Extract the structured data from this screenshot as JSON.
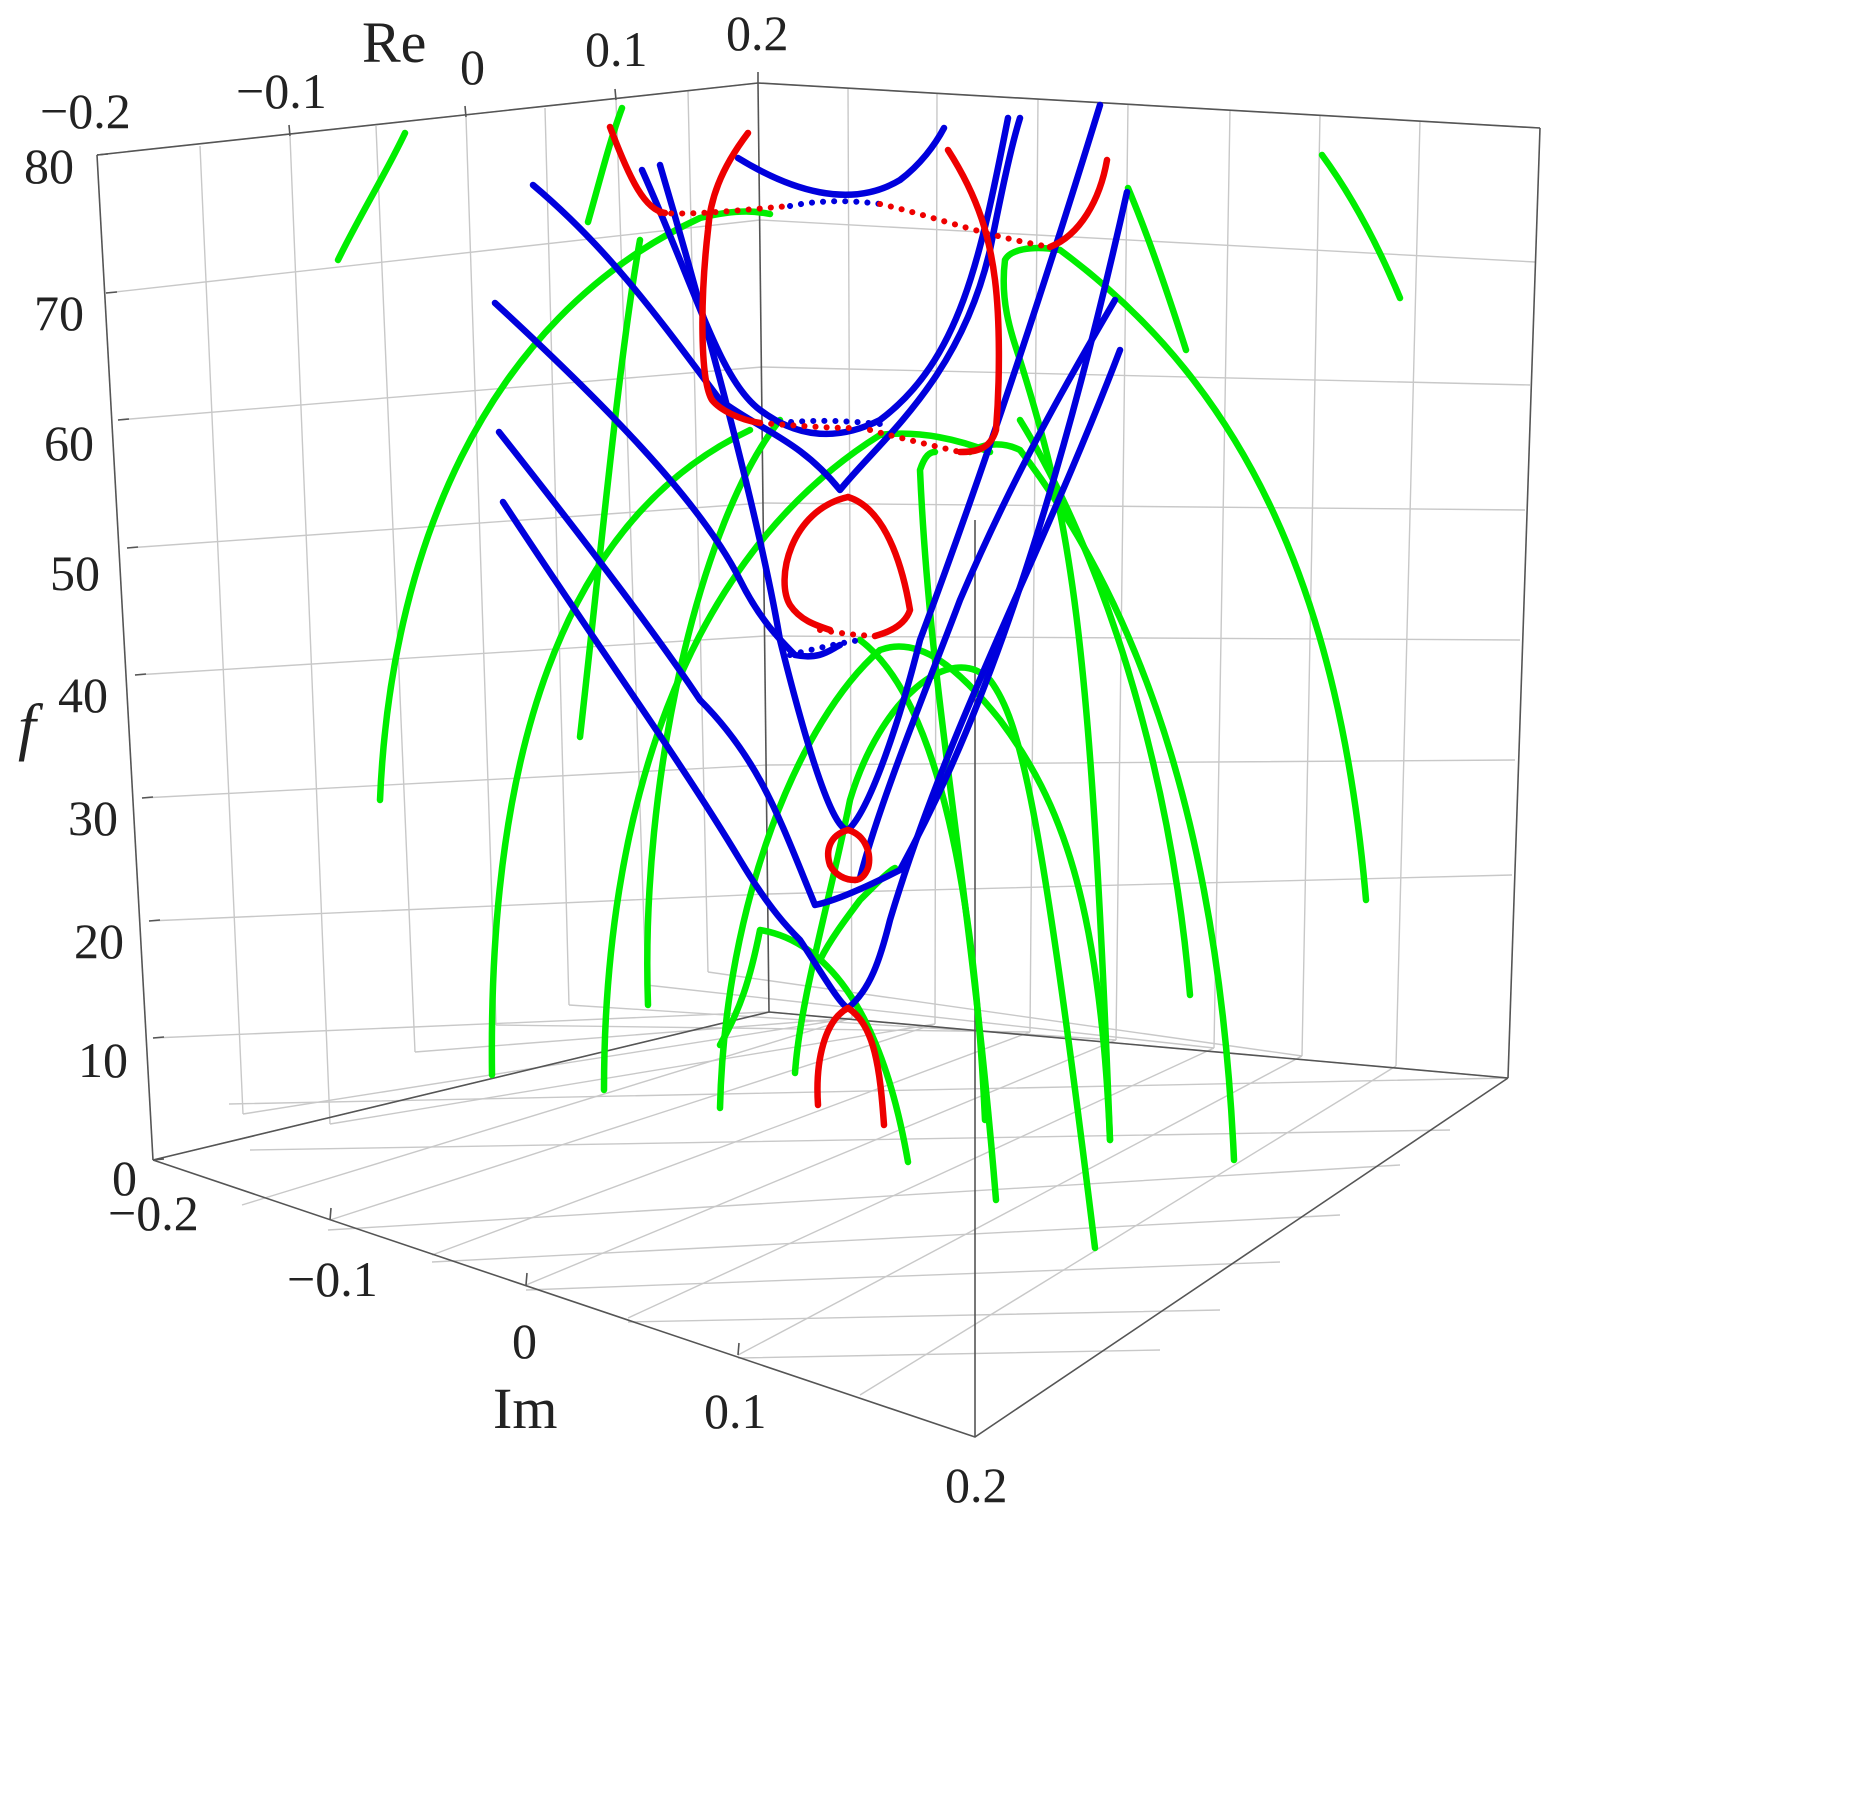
{
  "chart_data": {
    "type": "line3d",
    "axes": {
      "re": {
        "label": "Re",
        "ticks": [
          "−0.2",
          "−0.1",
          "0",
          "0.1",
          "0.2"
        ],
        "range": [
          -0.2,
          0.2
        ]
      },
      "im": {
        "label": "Im",
        "ticks": [
          "−0.2",
          "−0.1",
          "0",
          "0.1",
          "0.2"
        ],
        "range": [
          -0.2,
          0.2
        ]
      },
      "f": {
        "label": "f",
        "ticks": [
          "0",
          "10",
          "20",
          "30",
          "40",
          "50",
          "60",
          "70",
          "80"
        ],
        "range": [
          0,
          80
        ]
      }
    },
    "grid": true,
    "colors": {
      "green": "#00ee00",
      "blue": "#0000dd",
      "red": "#ee0000"
    },
    "series": [
      {
        "color": "green",
        "kind": "solid"
      },
      {
        "color": "blue",
        "kind": "solid"
      },
      {
        "color": "red",
        "kind": "solid"
      },
      {
        "color": "blue",
        "kind": "dotted"
      },
      {
        "color": "red",
        "kind": "dotted"
      }
    ]
  }
}
